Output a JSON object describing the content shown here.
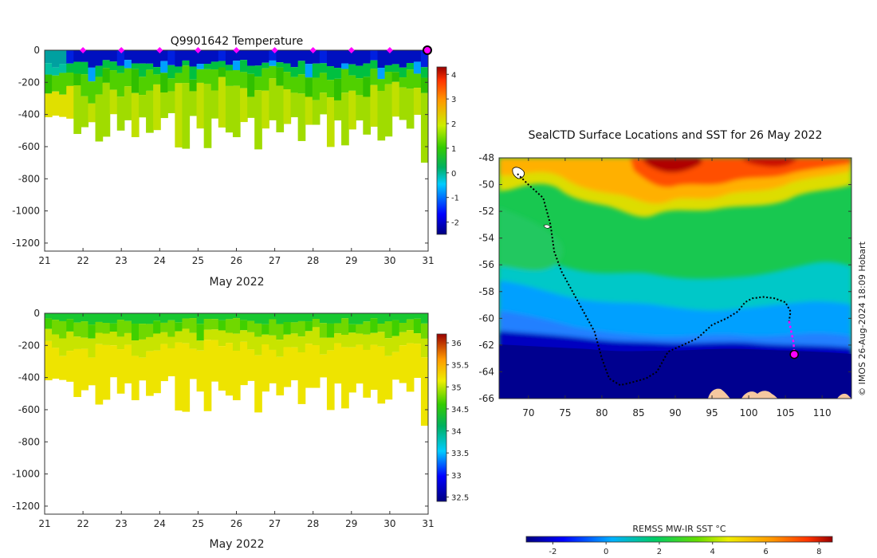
{
  "chart_data": [
    {
      "id": "temperature",
      "type": "heatmap",
      "title": "Q9901642  Temperature",
      "xlabel": "May 2022",
      "ylabel": "",
      "xlim": [
        21,
        31
      ],
      "ylim": [
        -1250,
        0
      ],
      "x_ticks": [
        "21",
        "22",
        "23",
        "24",
        "25",
        "26",
        "27",
        "28",
        "29",
        "30",
        "31"
      ],
      "y_ticks": [
        "0",
        "-200",
        "-400",
        "-600",
        "-800",
        "-1000",
        "-1200"
      ],
      "y_tick_values": [
        0,
        -200,
        -400,
        -600,
        -800,
        -1000,
        -1200
      ],
      "colorbar": {
        "min": -2.5,
        "max": 4.3,
        "ticks": [
          "-2",
          "-1",
          "0",
          "1",
          "2",
          "3",
          "4"
        ],
        "tick_values": [
          -2,
          -1,
          0,
          1,
          2,
          3,
          4
        ]
      },
      "profile_markers_day": [
        22,
        23,
        24,
        25,
        26,
        27,
        28,
        29,
        30
      ],
      "current_marker_day": 31
    },
    {
      "id": "salinity",
      "type": "heatmap",
      "title": "",
      "xlabel": "May 2022",
      "ylabel": "",
      "xlim": [
        21,
        31
      ],
      "ylim": [
        -1250,
        0
      ],
      "x_ticks": [
        "21",
        "22",
        "23",
        "24",
        "25",
        "26",
        "27",
        "28",
        "29",
        "30",
        "31"
      ],
      "y_ticks": [
        "0",
        "-200",
        "-400",
        "-600",
        "-800",
        "-1000",
        "-1200"
      ],
      "y_tick_values": [
        0,
        -200,
        -400,
        -600,
        -800,
        -1000,
        -1200
      ],
      "colorbar": {
        "min": 32.4,
        "max": 36.2,
        "ticks": [
          "32.5",
          "33",
          "33.5",
          "34",
          "34.5",
          "35",
          "35.5",
          "36"
        ],
        "tick_values": [
          32.5,
          33,
          33.5,
          34,
          34.5,
          35,
          35.5,
          36
        ]
      }
    },
    {
      "id": "sst_map",
      "type": "heatmap",
      "title": "SealCTD Surface Locations and SST for 26 May 2022",
      "xlim": [
        66,
        114
      ],
      "ylim": [
        -66,
        -48
      ],
      "x_ticks": [
        "70",
        "75",
        "80",
        "85",
        "90",
        "95",
        "100",
        "105",
        "110"
      ],
      "x_tick_values": [
        70,
        75,
        80,
        85,
        90,
        95,
        100,
        105,
        110
      ],
      "y_ticks": [
        "-48",
        "-50",
        "-52",
        "-54",
        "-56",
        "-58",
        "-60",
        "-62",
        "-64",
        "-66"
      ],
      "y_tick_values": [
        -48,
        -50,
        -52,
        -54,
        -56,
        -58,
        -60,
        -62,
        -64,
        -66
      ],
      "colorbar": {
        "label": "REMSS MW-IR SST °C",
        "min": -3,
        "max": 8.5,
        "ticks": [
          "-2",
          "0",
          "2",
          "4",
          "6",
          "8"
        ],
        "tick_values": [
          -2,
          0,
          2,
          4,
          6,
          8
        ]
      },
      "track": [
        [
          68.5,
          -49.2
        ],
        [
          70,
          -50
        ],
        [
          72,
          -51
        ],
        [
          73,
          -53
        ],
        [
          73.5,
          -55
        ],
        [
          74.5,
          -56.5
        ],
        [
          76,
          -58
        ],
        [
          77.5,
          -59.5
        ],
        [
          79,
          -61
        ],
        [
          80,
          -63
        ],
        [
          81,
          -64.5
        ],
        [
          82.5,
          -65
        ],
        [
          84,
          -64.8
        ],
        [
          86,
          -64.5
        ],
        [
          87.5,
          -64
        ],
        [
          89,
          -62.5
        ],
        [
          91,
          -62
        ],
        [
          93,
          -61.5
        ],
        [
          95,
          -60.5
        ],
        [
          97,
          -60
        ],
        [
          98.5,
          -59.5
        ],
        [
          99.5,
          -58.8
        ],
        [
          100.5,
          -58.5
        ],
        [
          102,
          -58.4
        ],
        [
          103.5,
          -58.5
        ],
        [
          105,
          -58.8
        ],
        [
          105.7,
          -59.5
        ],
        [
          105.5,
          -60.2
        ]
      ],
      "recent_track": [
        [
          105.5,
          -60.2
        ],
        [
          105.8,
          -61
        ],
        [
          106.1,
          -61.8
        ],
        [
          106.2,
          -62.6
        ]
      ],
      "current_position": [
        106.2,
        -62.7
      ]
    }
  ],
  "watermark": "© IMOS 26-Aug-2024 18:09 Hobart"
}
